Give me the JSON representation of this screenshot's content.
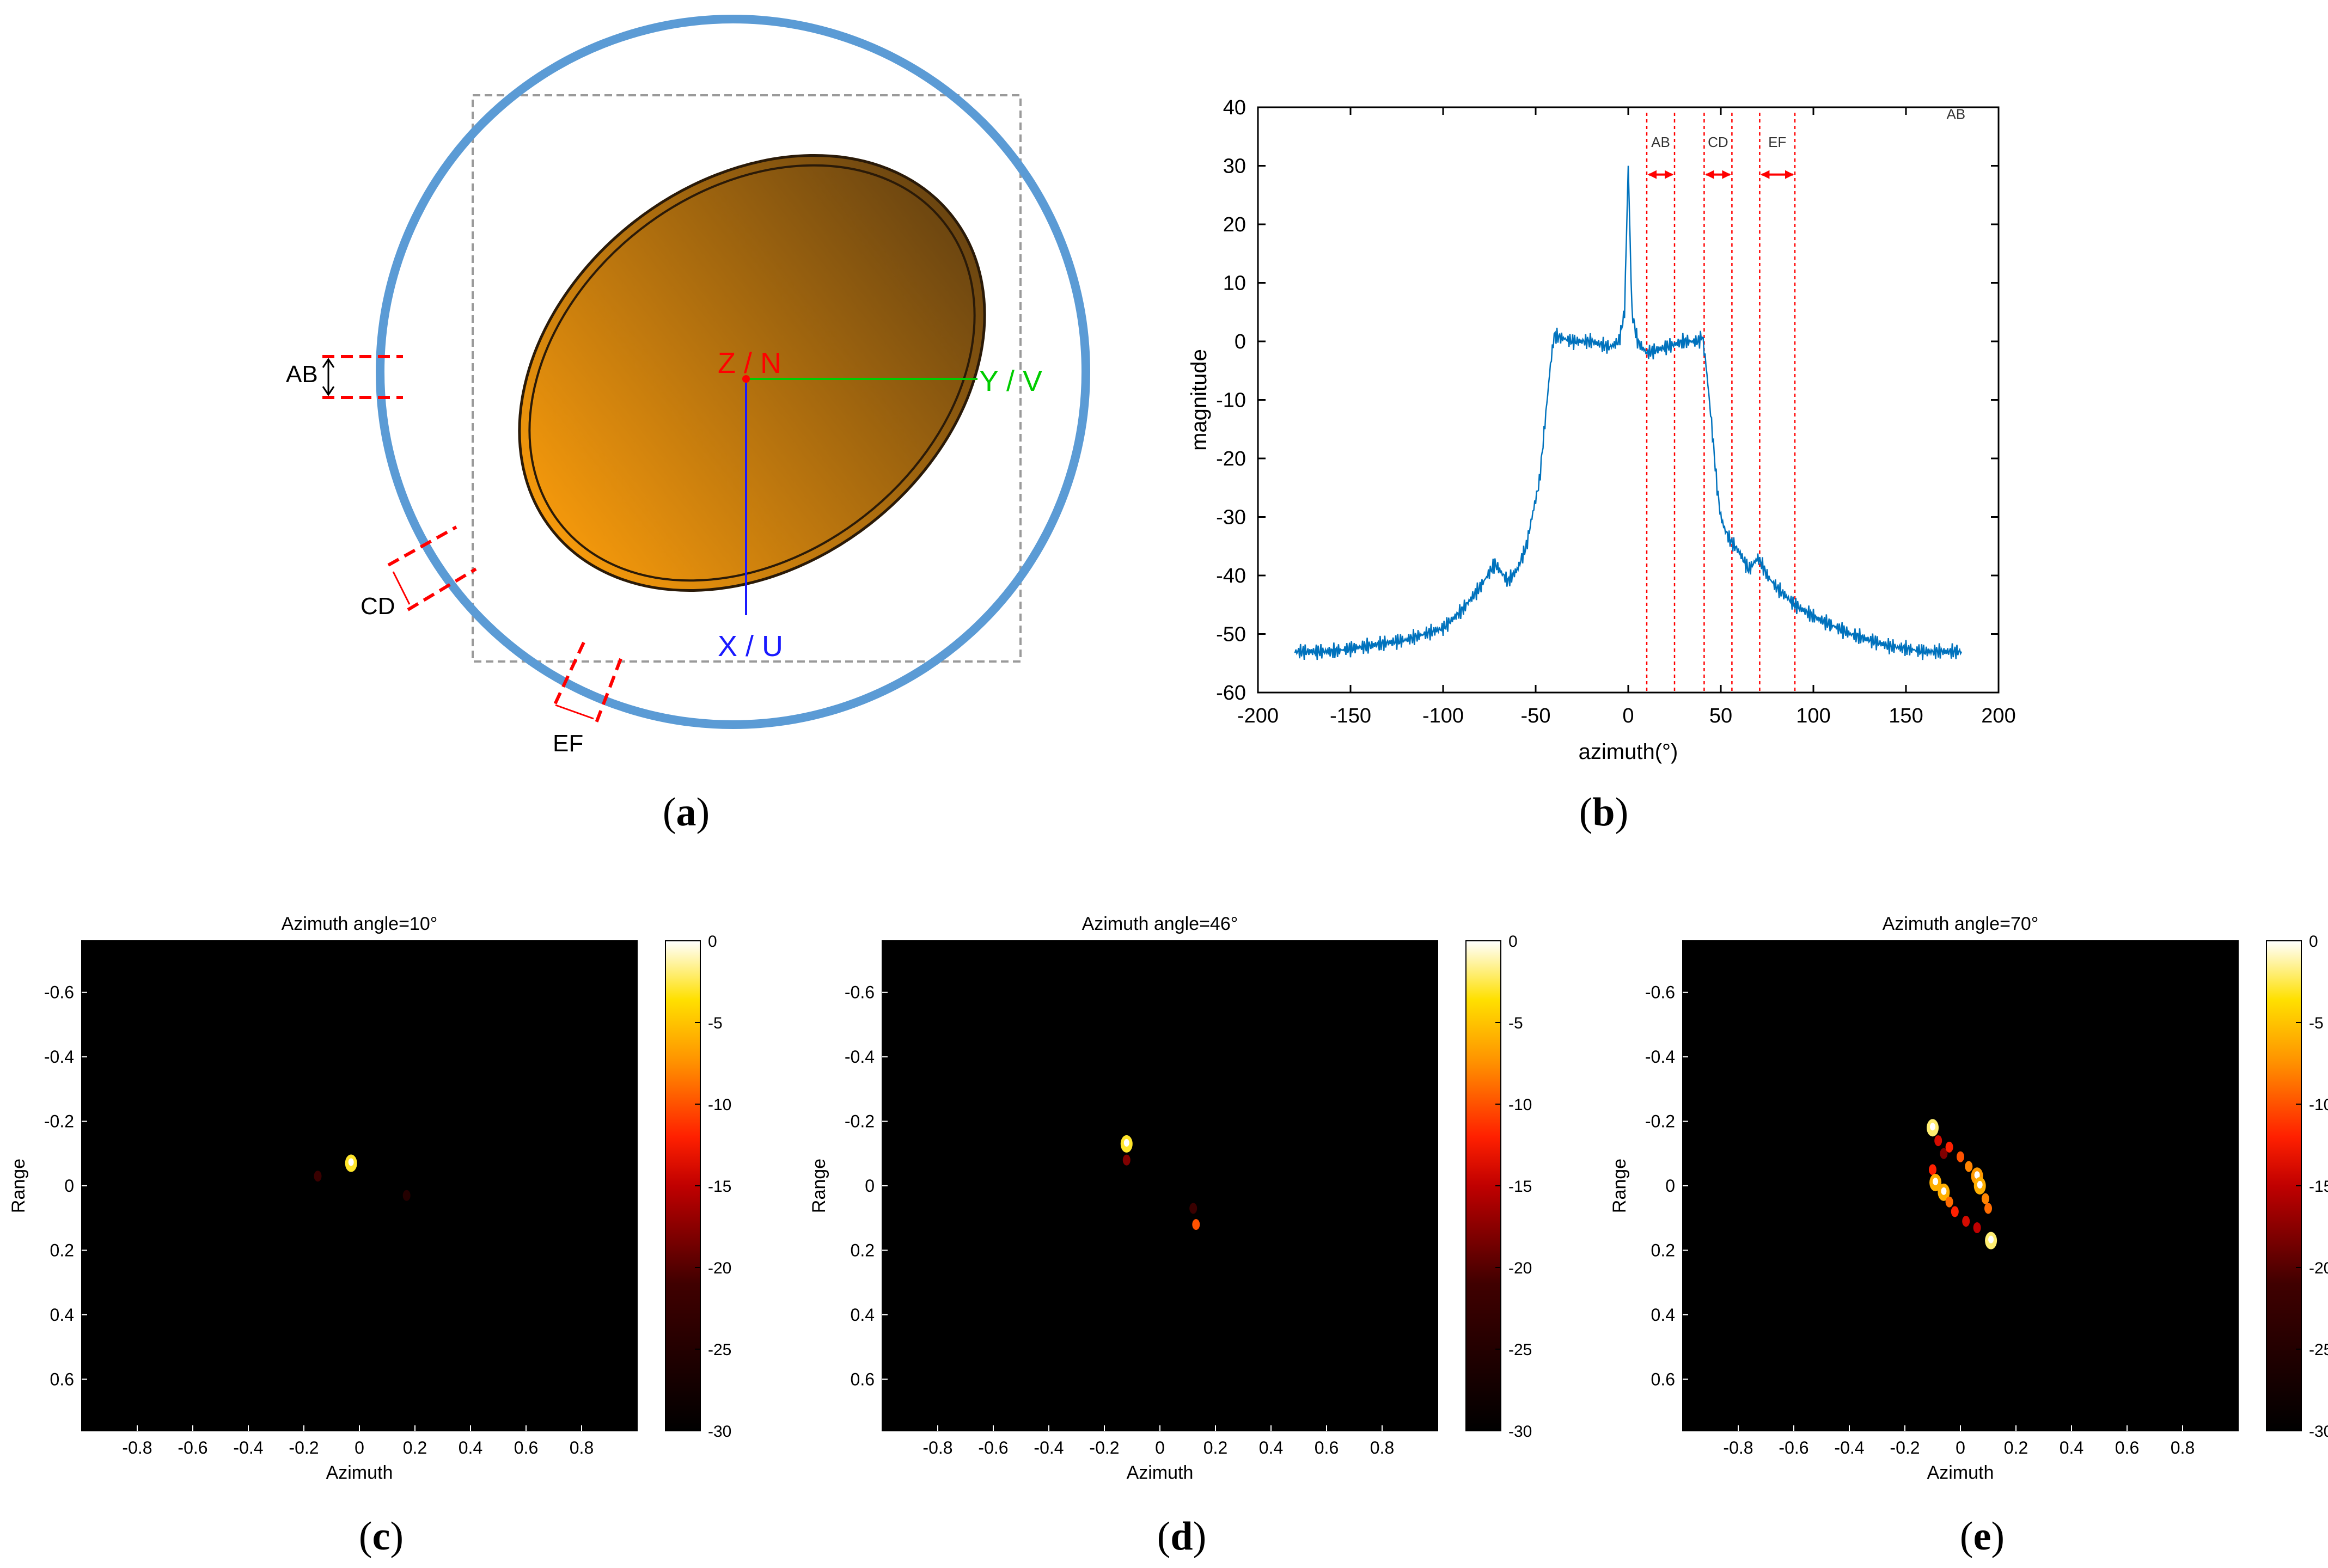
{
  "figure": {
    "panel_labels": [
      "a",
      "b",
      "c",
      "d",
      "e"
    ]
  },
  "schematic": {
    "axis_z": "Z / N",
    "axis_y": "Y / V",
    "axis_x": "X / U",
    "marker_ab": "AB",
    "marker_cd": "CD",
    "marker_ef": "EF",
    "colors": {
      "circle": "#5b9bd5",
      "ellipse_light": "#f5990c",
      "ellipse_dark": "#6b4510",
      "axis_z": "#ff0000",
      "axis_y": "#00cc00",
      "axis_x": "#1a1aff"
    }
  },
  "chart_data": [
    {
      "type": "line",
      "panel": "b",
      "title": "",
      "xlabel": "azimuth(°)",
      "ylabel": "magnitude",
      "xlim": [
        -200,
        200
      ],
      "ylim": [
        -60,
        40
      ],
      "xticks": [
        -200,
        -150,
        -100,
        -50,
        0,
        50,
        100,
        150,
        200
      ],
      "yticks": [
        40,
        30,
        20,
        10,
        0,
        -10,
        -20,
        -30,
        -40,
        -50,
        -60
      ],
      "line_color": "#0072bd",
      "series": [
        {
          "name": "magnitude",
          "x": [
            -180,
            -160,
            -140,
            -120,
            -100,
            -90,
            -80,
            -72,
            -65,
            -60,
            -55,
            -52,
            -50,
            -48,
            -45,
            -42,
            -40,
            -30,
            -20,
            -10,
            -5,
            -2,
            0,
            2,
            5,
            10,
            20,
            30,
            38,
            40,
            42,
            45,
            48,
            50,
            52,
            55,
            60,
            65,
            70,
            72,
            75,
            80,
            90,
            100,
            120,
            140,
            160,
            180
          ],
          "y": [
            -53,
            -53,
            -52,
            -51,
            -49,
            -46,
            -42,
            -38,
            -41,
            -39,
            -35,
            -30,
            -27,
            -24,
            -14,
            -4,
            1,
            0,
            0,
            -1,
            0,
            5,
            30,
            5,
            0,
            -2,
            -1,
            0,
            0,
            1,
            -4,
            -14,
            -25,
            -30,
            -32,
            -34,
            -36,
            -39,
            -37,
            -38,
            -40,
            -42,
            -45,
            -47,
            -50,
            -52,
            -53,
            -53
          ]
        }
      ],
      "bands": [
        {
          "label": "AB",
          "from": 10,
          "to": 25
        },
        {
          "label": "CD",
          "from": 41,
          "to": 56
        },
        {
          "label": "EF",
          "from": 71,
          "to": 90
        }
      ],
      "legend_text": "AB"
    },
    {
      "type": "heatmap",
      "panel": "c",
      "title": "Azimuth angle=10°",
      "xlabel": "Azimuth",
      "ylabel": "Range",
      "xlim": [
        -1,
        1
      ],
      "ylim": [
        0.76,
        -0.76
      ],
      "xticks": [
        -0.8,
        -0.6,
        -0.4,
        -0.2,
        0,
        0.2,
        0.4,
        0.6,
        0.8
      ],
      "yticks": [
        -0.6,
        -0.4,
        -0.2,
        0,
        0.2,
        0.4,
        0.6
      ],
      "colorbar_ticks": [
        0,
        -5,
        -10,
        -15,
        -20,
        -25,
        -30
      ],
      "colorbar_range": [
        -30,
        0
      ],
      "points": [
        {
          "az": -0.03,
          "rg": -0.07,
          "db": -3
        },
        {
          "az": -0.15,
          "rg": -0.03,
          "db": -22
        },
        {
          "az": 0.17,
          "rg": 0.03,
          "db": -25
        }
      ]
    },
    {
      "type": "heatmap",
      "panel": "d",
      "title": "Azimuth angle=46°",
      "xlabel": "Azimuth",
      "ylabel": "Range",
      "xlim": [
        -1,
        1
      ],
      "ylim": [
        0.76,
        -0.76
      ],
      "xticks": [
        -0.8,
        -0.6,
        -0.4,
        -0.2,
        0,
        0.2,
        0.4,
        0.6,
        0.8
      ],
      "yticks": [
        -0.6,
        -0.4,
        -0.2,
        0,
        0.2,
        0.4,
        0.6
      ],
      "colorbar_ticks": [
        0,
        -5,
        -10,
        -15,
        -20,
        -25,
        -30
      ],
      "colorbar_range": [
        -30,
        0
      ],
      "points": [
        {
          "az": -0.12,
          "rg": -0.13,
          "db": -3
        },
        {
          "az": -0.12,
          "rg": -0.08,
          "db": -18
        },
        {
          "az": 0.13,
          "rg": 0.12,
          "db": -10
        },
        {
          "az": 0.12,
          "rg": 0.07,
          "db": -22
        }
      ]
    },
    {
      "type": "heatmap",
      "panel": "e",
      "title": "Azimuth angle=70°",
      "xlabel": "Azimuth",
      "ylabel": "Range",
      "xlim": [
        -1,
        1
      ],
      "ylim": [
        0.76,
        -0.76
      ],
      "xticks": [
        -0.8,
        -0.6,
        -0.4,
        -0.2,
        0,
        0.2,
        0.4,
        0.6,
        0.8
      ],
      "yticks": [
        -0.6,
        -0.4,
        -0.2,
        0,
        0.2,
        0.4,
        0.6
      ],
      "colorbar_ticks": [
        0,
        -5,
        -10,
        -15,
        -20,
        -25,
        -30
      ],
      "colorbar_range": [
        -30,
        0
      ],
      "points": [
        {
          "az": -0.1,
          "rg": -0.18,
          "db": -2
        },
        {
          "az": -0.08,
          "rg": -0.14,
          "db": -14
        },
        {
          "az": -0.06,
          "rg": -0.1,
          "db": -18
        },
        {
          "az": -0.04,
          "rg": -0.12,
          "db": -12
        },
        {
          "az": 0.0,
          "rg": -0.09,
          "db": -10
        },
        {
          "az": 0.03,
          "rg": -0.06,
          "db": -8
        },
        {
          "az": 0.06,
          "rg": -0.03,
          "db": -7
        },
        {
          "az": 0.07,
          "rg": 0.0,
          "db": -6
        },
        {
          "az": 0.09,
          "rg": 0.04,
          "db": -8
        },
        {
          "az": 0.1,
          "rg": 0.07,
          "db": -9
        },
        {
          "az": -0.1,
          "rg": -0.05,
          "db": -12
        },
        {
          "az": -0.09,
          "rg": -0.01,
          "db": -6
        },
        {
          "az": -0.06,
          "rg": 0.02,
          "db": -6
        },
        {
          "az": -0.04,
          "rg": 0.05,
          "db": -9
        },
        {
          "az": -0.02,
          "rg": 0.08,
          "db": -12
        },
        {
          "az": 0.02,
          "rg": 0.11,
          "db": -14
        },
        {
          "az": 0.06,
          "rg": 0.13,
          "db": -15
        },
        {
          "az": 0.11,
          "rg": 0.17,
          "db": -2
        }
      ]
    }
  ]
}
